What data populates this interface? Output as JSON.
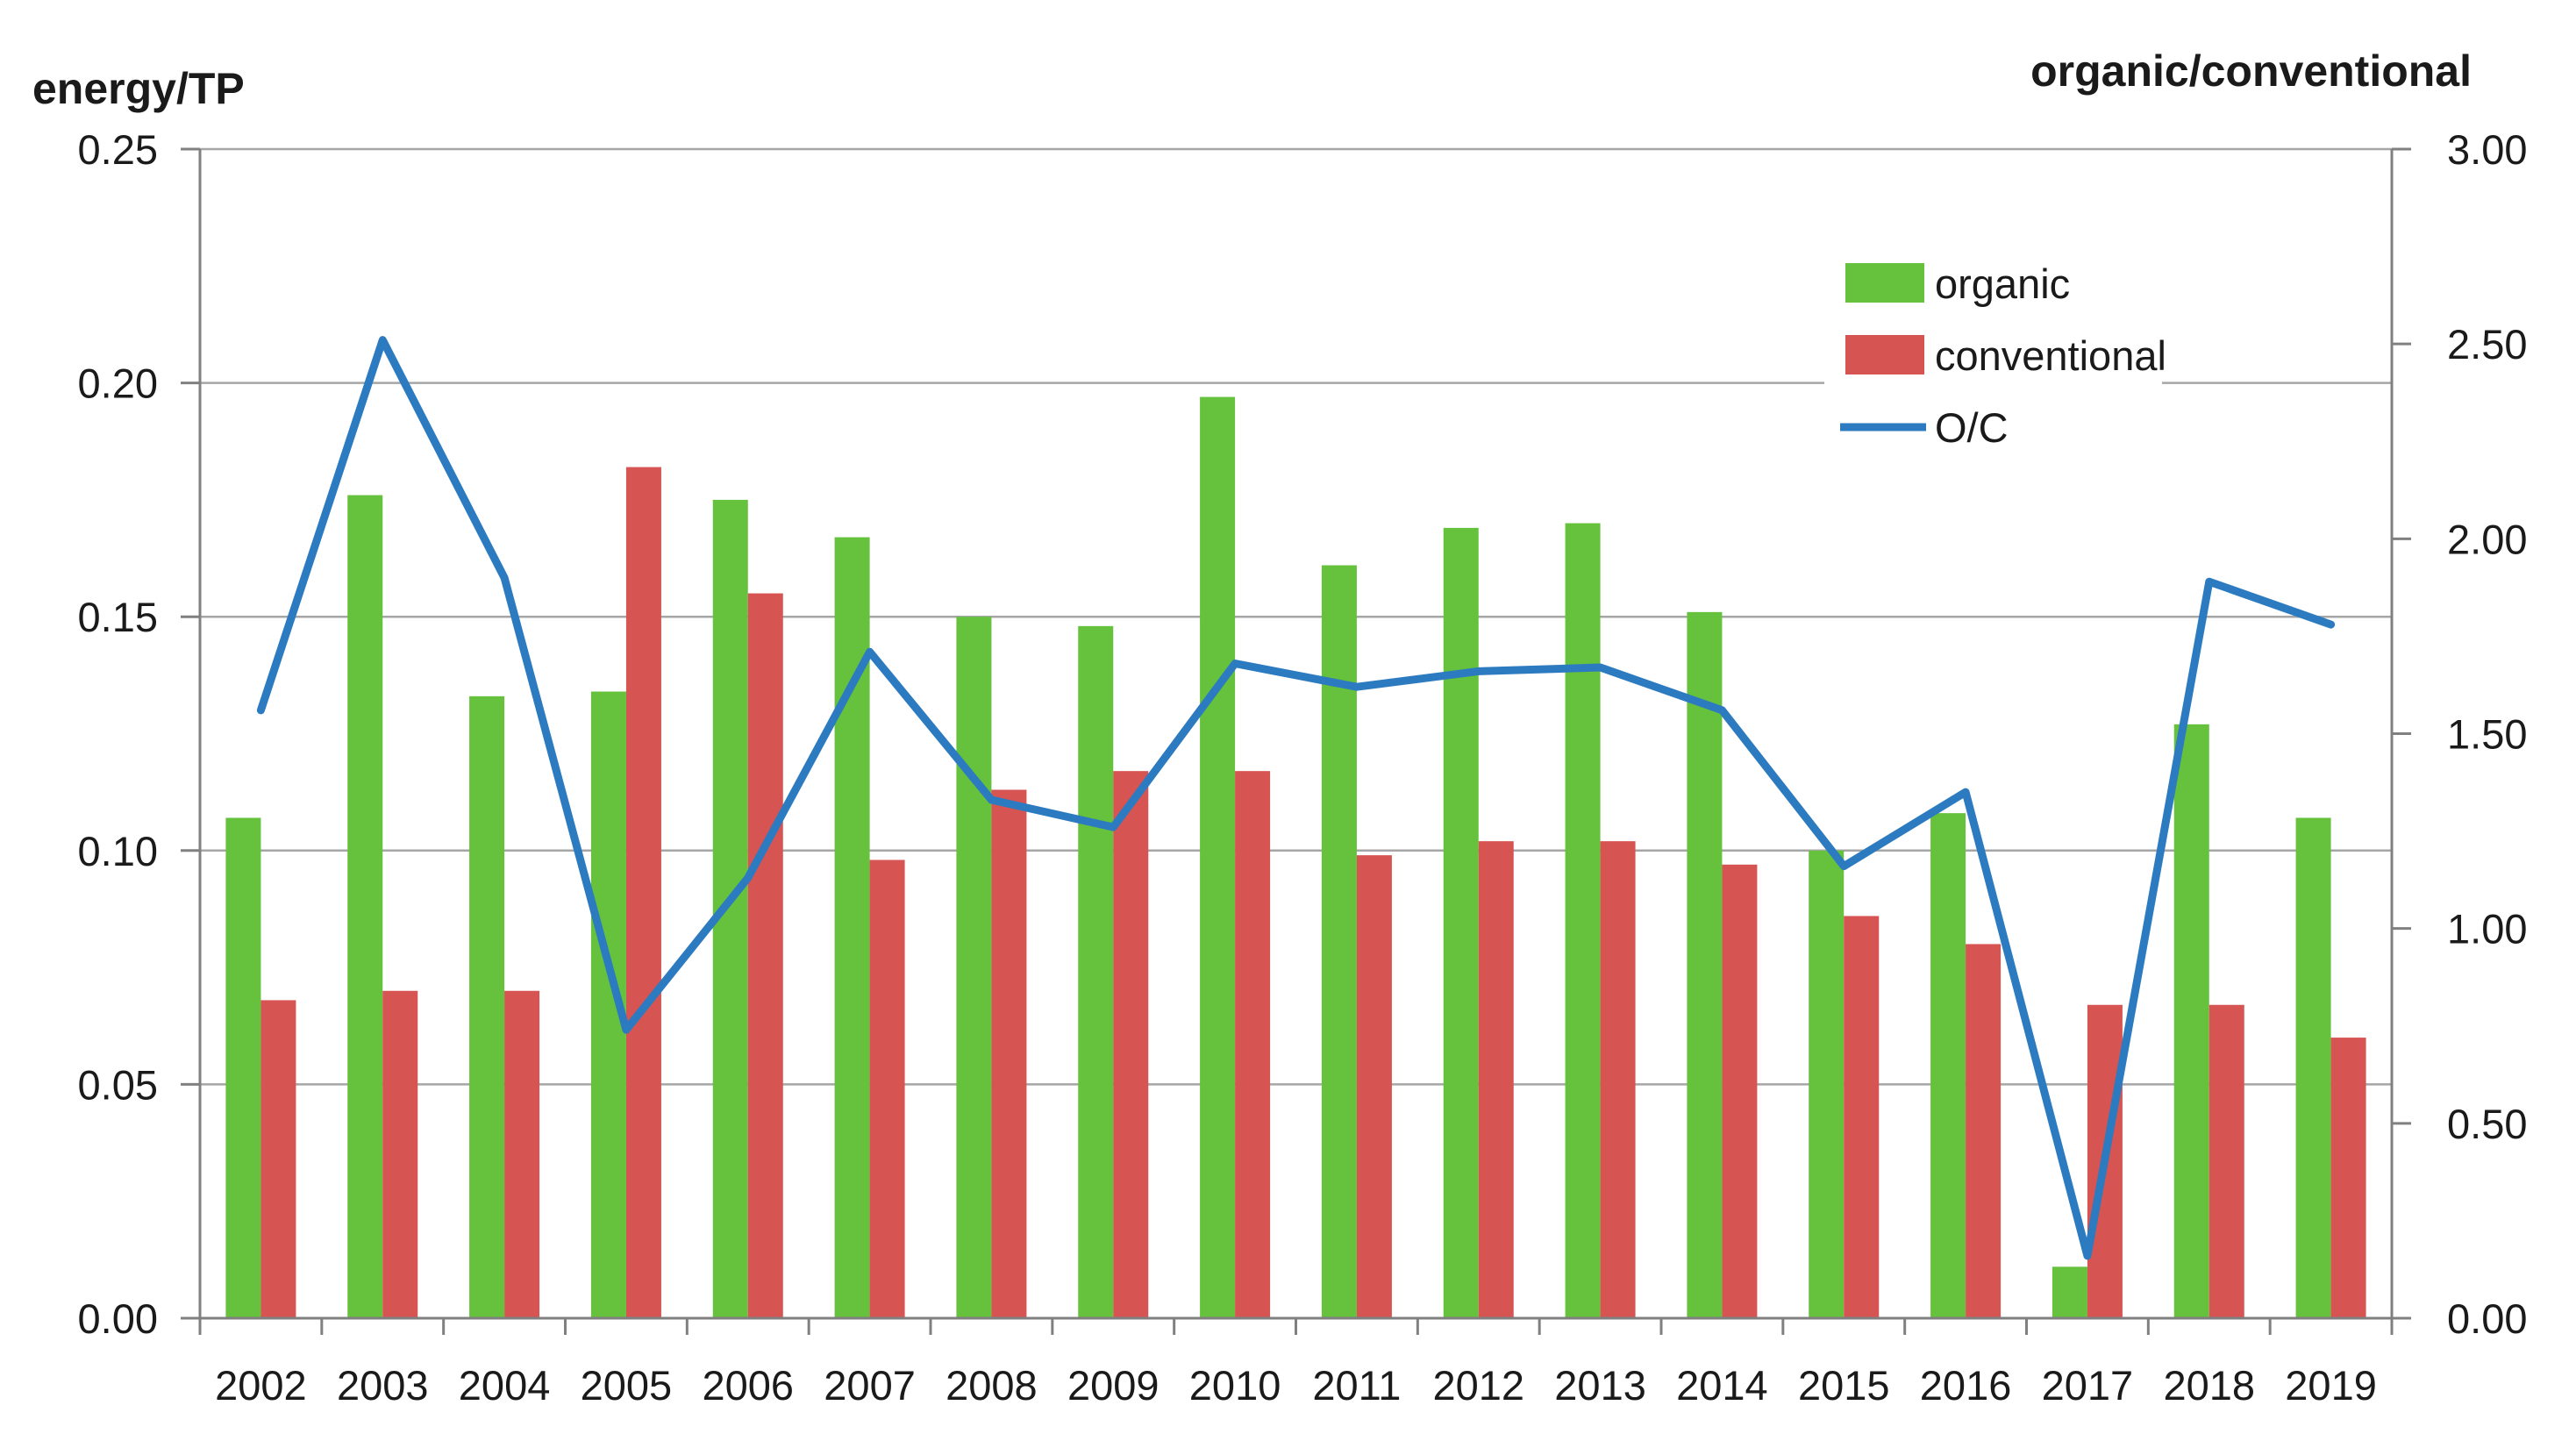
{
  "chart_data": {
    "type": "combo",
    "subtypes": [
      "bar",
      "bar",
      "line"
    ],
    "title_left": "energy/TP",
    "title_right": "organic/conventional",
    "categories": [
      "2002",
      "2003",
      "2004",
      "2005",
      "2006",
      "2007",
      "2008",
      "2009",
      "2010",
      "2011",
      "2012",
      "2013",
      "2014",
      "2015",
      "2016",
      "2017",
      "2018",
      "2019"
    ],
    "series": [
      {
        "name": "organic",
        "type": "bar",
        "axis": "left",
        "color": "#66c13d",
        "values": [
          0.107,
          0.176,
          0.133,
          0.134,
          0.175,
          0.167,
          0.15,
          0.148,
          0.197,
          0.161,
          0.169,
          0.17,
          0.151,
          0.1,
          0.108,
          0.011,
          0.127,
          0.107
        ]
      },
      {
        "name": "conventional",
        "type": "bar",
        "axis": "left",
        "color": "#d65452",
        "values": [
          0.068,
          0.07,
          0.07,
          0.182,
          0.155,
          0.098,
          0.113,
          0.117,
          0.117,
          0.099,
          0.102,
          0.102,
          0.097,
          0.086,
          0.08,
          0.067,
          0.067,
          0.06
        ]
      },
      {
        "name": "O/C",
        "type": "line",
        "axis": "right",
        "color": "#2c7bc0",
        "values": [
          1.56,
          2.51,
          1.9,
          0.74,
          1.13,
          1.71,
          1.33,
          1.26,
          1.68,
          1.62,
          1.66,
          1.67,
          1.56,
          1.16,
          1.35,
          0.16,
          1.89,
          1.78
        ]
      }
    ],
    "left_axis": {
      "title": "energy/TP",
      "min": 0,
      "max": 0.25,
      "tick_labels": [
        "0.00",
        "0.05",
        "0.10",
        "0.15",
        "0.20",
        "0.25"
      ]
    },
    "right_axis": {
      "title": "organic/conventional",
      "min": 0,
      "max": 3,
      "tick_labels": [
        "0.00",
        "0.50",
        "1.00",
        "1.50",
        "2.00",
        "2.50",
        "3.00"
      ]
    },
    "grid": "horizontal",
    "legend_position": "top-right-inside",
    "colors": {
      "organic": "#66c13d",
      "conventional": "#d65452",
      "line": "#2c7bc0",
      "gridline": "#a6a6a6",
      "axis": "#808080",
      "text": "#1a1a1a",
      "background": "#ffffff"
    }
  }
}
